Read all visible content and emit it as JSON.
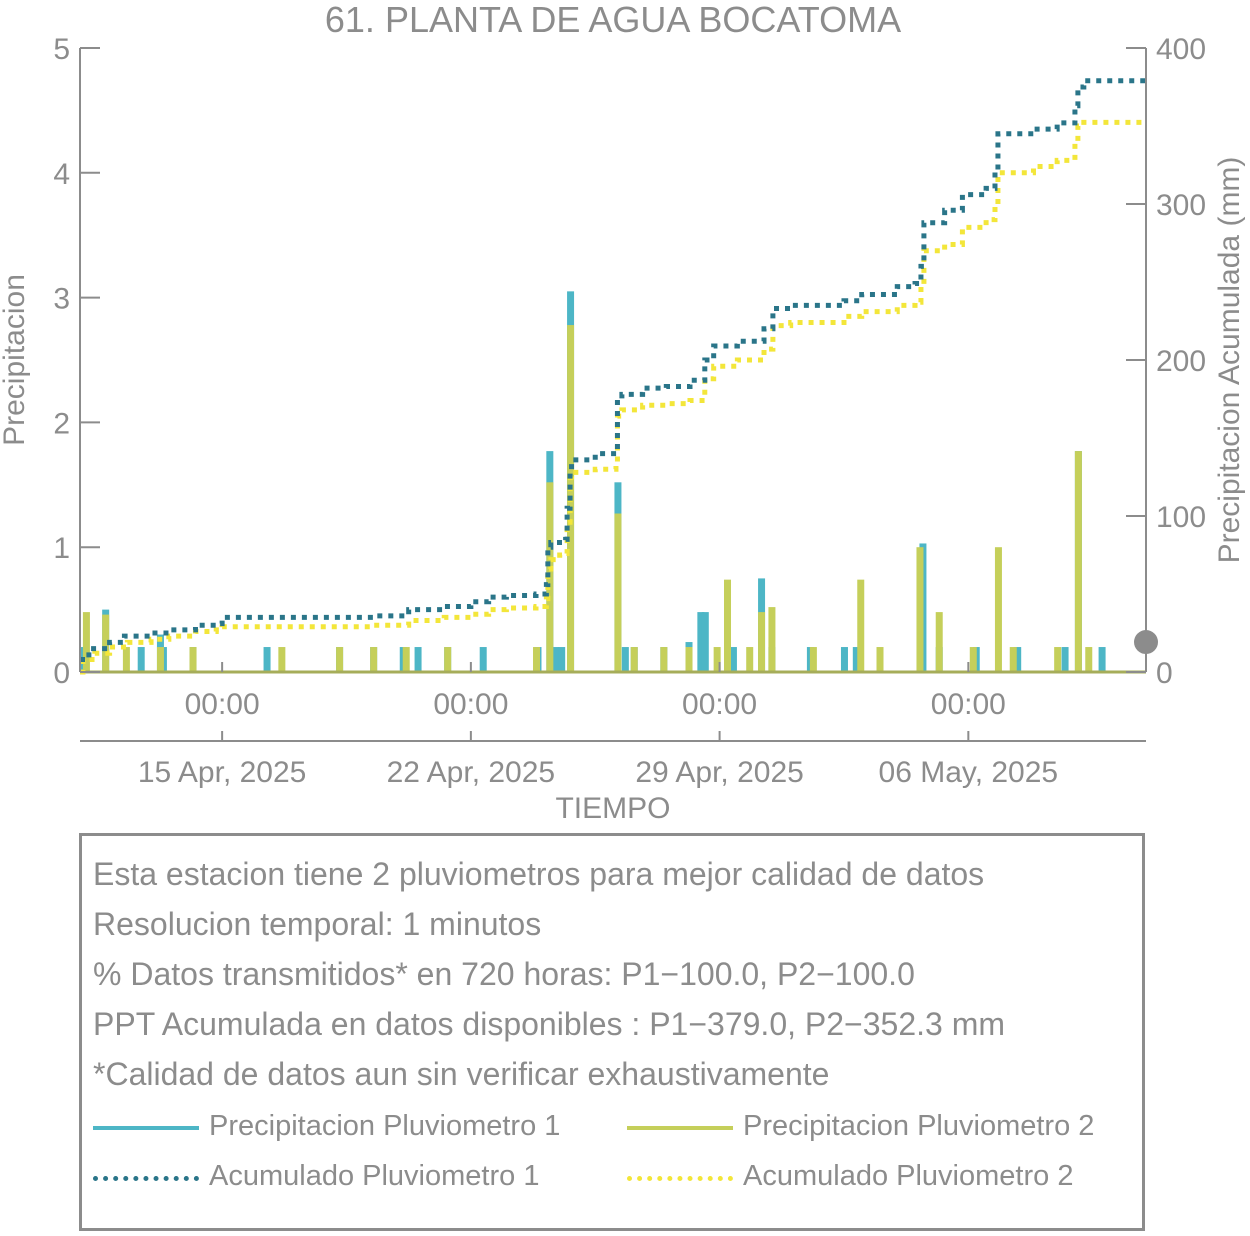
{
  "chart_data": {
    "type": "bar+line",
    "title": "61. PLANTA DE AGUA BOCATOMA",
    "xlabel": "TIEMPO",
    "ylabel_left": "Precipitacion",
    "ylabel_right": "Precipitacion Acumulada (mm)",
    "ylim_left": [
      0,
      5
    ],
    "ylim_right": [
      0,
      400
    ],
    "yticks_left": [
      0,
      1,
      2,
      3,
      4,
      5
    ],
    "yticks_right": [
      0,
      100,
      200,
      300,
      400
    ],
    "x_range_days": [
      "2025-04-11T00:00",
      "2025-05-11T00:00"
    ],
    "xticks": [
      {
        "date": "2025-04-15T00:00",
        "time": "00:00",
        "day": "15 Apr, 2025"
      },
      {
        "date": "2025-04-22T00:00",
        "time": "00:00",
        "day": "22 Apr, 2025"
      },
      {
        "date": "2025-04-29T00:00",
        "time": "00:00",
        "day": "29 Apr, 2025"
      },
      {
        "date": "2025-05-06T00:00",
        "time": "00:00",
        "day": "06 May, 2025"
      }
    ],
    "colors": {
      "p1": "#4db6c6",
      "p2": "#c5cf5a",
      "acc1": "#2a7589",
      "acc2": "#f3e63a",
      "axis": "#8c8c8c",
      "marker": "#8c8c8c"
    },
    "series": [
      {
        "name": "Precipitacion Pluviometro 1",
        "kind": "bars",
        "points": [
          [
            "2025-04-11T02:00",
            0.2
          ],
          [
            "2025-04-11T17:00",
            0.5
          ],
          [
            "2025-04-12T17:00",
            0.2
          ],
          [
            "2025-04-13T06:00",
            0.3
          ],
          [
            "2025-04-13T08:00",
            0.2
          ],
          [
            "2025-04-14T04:00",
            0.2
          ],
          [
            "2025-04-16T06:00",
            0.2
          ],
          [
            "2025-04-18T07:00",
            0.2
          ],
          [
            "2025-04-19T06:00",
            0.2
          ],
          [
            "2025-04-20T02:00",
            0.2
          ],
          [
            "2025-04-20T12:00",
            0.2
          ],
          [
            "2025-04-21T08:00",
            0.2
          ],
          [
            "2025-04-22T08:00",
            0.2
          ],
          [
            "2025-04-23T21:00",
            0.2
          ],
          [
            "2025-04-24T05:00",
            1.77
          ],
          [
            "2025-04-24T09:00",
            0.2
          ],
          [
            "2025-04-24T13:00",
            0.2
          ],
          [
            "2025-04-24T19:00",
            3.05
          ],
          [
            "2025-04-26T03:00",
            1.52
          ],
          [
            "2025-04-26T08:00",
            0.2
          ],
          [
            "2025-04-26T14:00",
            0.2
          ],
          [
            "2025-04-27T10:00",
            0.2
          ],
          [
            "2025-04-28T03:00",
            0.24
          ],
          [
            "2025-04-28T11:00",
            0.48
          ],
          [
            "2025-04-28T14:00",
            0.48
          ],
          [
            "2025-04-29T09:00",
            0.2
          ],
          [
            "2025-04-30T04:00",
            0.75
          ],
          [
            "2025-04-30T11:00",
            0.2
          ],
          [
            "2025-05-01T13:00",
            0.2
          ],
          [
            "2025-05-02T12:00",
            0.2
          ],
          [
            "2025-05-02T20:00",
            0.2
          ],
          [
            "2025-05-04T17:00",
            1.03
          ],
          [
            "2025-05-05T04:00",
            0.2
          ],
          [
            "2025-05-06T05:00",
            0.2
          ],
          [
            "2025-05-07T09:00",
            0.2
          ],
          [
            "2025-05-08T17:00",
            0.2
          ],
          [
            "2025-05-09T02:00",
            1.77
          ],
          [
            "2025-05-09T18:00",
            0.2
          ]
        ]
      },
      {
        "name": "Precipitacion Pluviometro 2",
        "kind": "bars",
        "points": [
          [
            "2025-04-11T04:00",
            0.48
          ],
          [
            "2025-04-11T17:00",
            0.46
          ],
          [
            "2025-04-12T07:00",
            0.2
          ],
          [
            "2025-04-13T06:00",
            0.2
          ],
          [
            "2025-04-14T04:00",
            0.2
          ],
          [
            "2025-04-16T16:00",
            0.2
          ],
          [
            "2025-04-18T07:00",
            0.2
          ],
          [
            "2025-04-19T06:00",
            0.2
          ],
          [
            "2025-04-20T04:00",
            0.2
          ],
          [
            "2025-04-21T08:00",
            0.2
          ],
          [
            "2025-04-23T20:00",
            0.2
          ],
          [
            "2025-04-24T05:00",
            1.52
          ],
          [
            "2025-04-24T19:00",
            2.78
          ],
          [
            "2025-04-26T03:00",
            1.27
          ],
          [
            "2025-04-26T14:00",
            0.2
          ],
          [
            "2025-04-27T10:00",
            0.2
          ],
          [
            "2025-04-28T03:00",
            0.2
          ],
          [
            "2025-04-28T22:00",
            0.2
          ],
          [
            "2025-04-29T05:00",
            0.74
          ],
          [
            "2025-04-29T20:00",
            0.2
          ],
          [
            "2025-04-30T04:00",
            0.48
          ],
          [
            "2025-04-30T11:00",
            0.52
          ],
          [
            "2025-05-01T15:00",
            0.2
          ],
          [
            "2025-05-02T23:00",
            0.74
          ],
          [
            "2025-05-03T12:00",
            0.2
          ],
          [
            "2025-05-04T15:00",
            1.0
          ],
          [
            "2025-05-05T04:00",
            0.48
          ],
          [
            "2025-05-06T03:00",
            0.2
          ],
          [
            "2025-05-06T20:00",
            1.0
          ],
          [
            "2025-05-07T06:00",
            0.2
          ],
          [
            "2025-05-08T12:00",
            0.2
          ],
          [
            "2025-05-09T02:00",
            1.77
          ],
          [
            "2025-05-09T09:00",
            0.2
          ]
        ]
      },
      {
        "name": "Acumulado Pluviometro 1",
        "kind": "cumulative",
        "points": [
          [
            "2025-04-11T00:00",
            8
          ],
          [
            "2025-04-11T06:00",
            15
          ],
          [
            "2025-04-11T20:00",
            19
          ],
          [
            "2025-04-12T06:00",
            23
          ],
          [
            "2025-04-13T00:00",
            25
          ],
          [
            "2025-04-13T12:00",
            27
          ],
          [
            "2025-04-14T06:00",
            30
          ],
          [
            "2025-04-14T20:00",
            31
          ],
          [
            "2025-04-15T00:00",
            35
          ],
          [
            "2025-04-16T00:00",
            35
          ],
          [
            "2025-04-18T00:00",
            35
          ],
          [
            "2025-04-19T06:00",
            36
          ],
          [
            "2025-04-20T04:00",
            36
          ],
          [
            "2025-04-20T06:00",
            40
          ],
          [
            "2025-04-21T06:00",
            42
          ],
          [
            "2025-04-22T00:00",
            45
          ],
          [
            "2025-04-22T12:00",
            48
          ],
          [
            "2025-04-23T00:00",
            49
          ],
          [
            "2025-04-23T20:00",
            50
          ],
          [
            "2025-04-24T03:00",
            56
          ],
          [
            "2025-04-24T04:00",
            80
          ],
          [
            "2025-04-24T06:00",
            83
          ],
          [
            "2025-04-24T12:00",
            83
          ],
          [
            "2025-04-24T16:00",
            85
          ],
          [
            "2025-04-24T17:00",
            105
          ],
          [
            "2025-04-24T19:00",
            130
          ],
          [
            "2025-04-24T20:00",
            136
          ],
          [
            "2025-04-25T12:00",
            140
          ],
          [
            "2025-04-26T02:00",
            140
          ],
          [
            "2025-04-26T03:00",
            175
          ],
          [
            "2025-04-26T06:00",
            178
          ],
          [
            "2025-04-26T20:00",
            182
          ],
          [
            "2025-04-27T12:00",
            183
          ],
          [
            "2025-04-28T04:00",
            187
          ],
          [
            "2025-04-28T14:00",
            200
          ],
          [
            "2025-04-28T20:00",
            209
          ],
          [
            "2025-04-29T12:00",
            212
          ],
          [
            "2025-04-29T20:00",
            212
          ],
          [
            "2025-04-30T06:00",
            220
          ],
          [
            "2025-04-30T12:00",
            233
          ],
          [
            "2025-05-01T00:00",
            235
          ],
          [
            "2025-05-02T00:00",
            235
          ],
          [
            "2025-05-02T12:00",
            238
          ],
          [
            "2025-05-03T00:00",
            242
          ],
          [
            "2025-05-04T00:00",
            247
          ],
          [
            "2025-05-04T12:00",
            249
          ],
          [
            "2025-05-04T16:00",
            260
          ],
          [
            "2025-05-04T18:00",
            288
          ],
          [
            "2025-05-05T08:00",
            296
          ],
          [
            "2025-05-05T20:00",
            306
          ],
          [
            "2025-05-06T12:00",
            310
          ],
          [
            "2025-05-06T18:00",
            322
          ],
          [
            "2025-05-06T20:00",
            345
          ],
          [
            "2025-05-07T20:00",
            348
          ],
          [
            "2025-05-08T12:00",
            352
          ],
          [
            "2025-05-09T00:00",
            363
          ],
          [
            "2025-05-09T02:00",
            375
          ],
          [
            "2025-05-09T06:00",
            379
          ],
          [
            "2025-05-11T00:00",
            379
          ]
        ]
      },
      {
        "name": "Acumulado Pluviometro 2",
        "kind": "cumulative",
        "points": [
          [
            "2025-04-11T00:00",
            0
          ],
          [
            "2025-04-11T02:00",
            8
          ],
          [
            "2025-04-11T10:00",
            12
          ],
          [
            "2025-04-11T20:00",
            16
          ],
          [
            "2025-04-12T08:00",
            19
          ],
          [
            "2025-04-13T00:00",
            21
          ],
          [
            "2025-04-13T12:00",
            23
          ],
          [
            "2025-04-14T06:00",
            26
          ],
          [
            "2025-04-14T20:00",
            27
          ],
          [
            "2025-04-15T00:00",
            29
          ],
          [
            "2025-04-16T00:00",
            29
          ],
          [
            "2025-04-18T00:00",
            29
          ],
          [
            "2025-04-19T06:00",
            30
          ],
          [
            "2025-04-20T04:00",
            30
          ],
          [
            "2025-04-20T06:00",
            33
          ],
          [
            "2025-04-21T06:00",
            35
          ],
          [
            "2025-04-22T00:00",
            37
          ],
          [
            "2025-04-22T12:00",
            40
          ],
          [
            "2025-04-23T00:00",
            41
          ],
          [
            "2025-04-23T20:00",
            42
          ],
          [
            "2025-04-24T03:00",
            47
          ],
          [
            "2025-04-24T04:00",
            66
          ],
          [
            "2025-04-24T06:00",
            72
          ],
          [
            "2025-04-24T12:00",
            75
          ],
          [
            "2025-04-24T16:00",
            76
          ],
          [
            "2025-04-24T17:00",
            96
          ],
          [
            "2025-04-24T19:00",
            125
          ],
          [
            "2025-04-24T20:00",
            128
          ],
          [
            "2025-04-25T12:00",
            130
          ],
          [
            "2025-04-26T02:00",
            134
          ],
          [
            "2025-04-26T03:00",
            164
          ],
          [
            "2025-04-26T06:00",
            168
          ],
          [
            "2025-04-26T20:00",
            171
          ],
          [
            "2025-04-27T12:00",
            172
          ],
          [
            "2025-04-28T04:00",
            174
          ],
          [
            "2025-04-28T14:00",
            188
          ],
          [
            "2025-04-28T20:00",
            196
          ],
          [
            "2025-04-29T12:00",
            200
          ],
          [
            "2025-04-29T20:00",
            200
          ],
          [
            "2025-04-30T06:00",
            207
          ],
          [
            "2025-04-30T12:00",
            222
          ],
          [
            "2025-05-01T00:00",
            224
          ],
          [
            "2025-05-02T00:00",
            224
          ],
          [
            "2025-05-02T12:00",
            228
          ],
          [
            "2025-05-03T00:00",
            231
          ],
          [
            "2025-05-04T00:00",
            235
          ],
          [
            "2025-05-04T12:00",
            237
          ],
          [
            "2025-05-04T16:00",
            248
          ],
          [
            "2025-05-04T18:00",
            270
          ],
          [
            "2025-05-05T08:00",
            274
          ],
          [
            "2025-05-05T20:00",
            285
          ],
          [
            "2025-05-06T12:00",
            290
          ],
          [
            "2025-05-06T18:00",
            300
          ],
          [
            "2025-05-06T20:00",
            320
          ],
          [
            "2025-05-07T20:00",
            324
          ],
          [
            "2025-05-08T12:00",
            328
          ],
          [
            "2025-05-09T00:00",
            340
          ],
          [
            "2025-05-09T02:00",
            350
          ],
          [
            "2025-05-09T06:00",
            352.3
          ],
          [
            "2025-05-11T00:00",
            352.3
          ]
        ]
      }
    ],
    "marker": {
      "date": "2025-05-11T00:00",
      "value_left": 0.24
    }
  },
  "info": {
    "lines": [
      "Esta estacion tiene 2 pluviometros para mejor calidad de datos",
      "Resolucion temporal: 1 minutos",
      "% Datos transmitidos* en 720 horas: P1−100.0, P2−100.0",
      "PPT Acumulada en datos disponibles : P1−379.0, P2−352.3 mm",
      "*Calidad de datos aun sin verificar exhaustivamente"
    ],
    "legend": [
      {
        "label": "Precipitacion Pluviometro 1",
        "color": "#4db6c6",
        "style": "solid"
      },
      {
        "label": "Precipitacion Pluviometro 2",
        "color": "#c5cf5a",
        "style": "solid"
      },
      {
        "label": "Acumulado Pluviometro 1",
        "color": "#2a7589",
        "style": "dotted"
      },
      {
        "label": "Acumulado Pluviometro 2",
        "color": "#f3e63a",
        "style": "dotted"
      }
    ]
  }
}
